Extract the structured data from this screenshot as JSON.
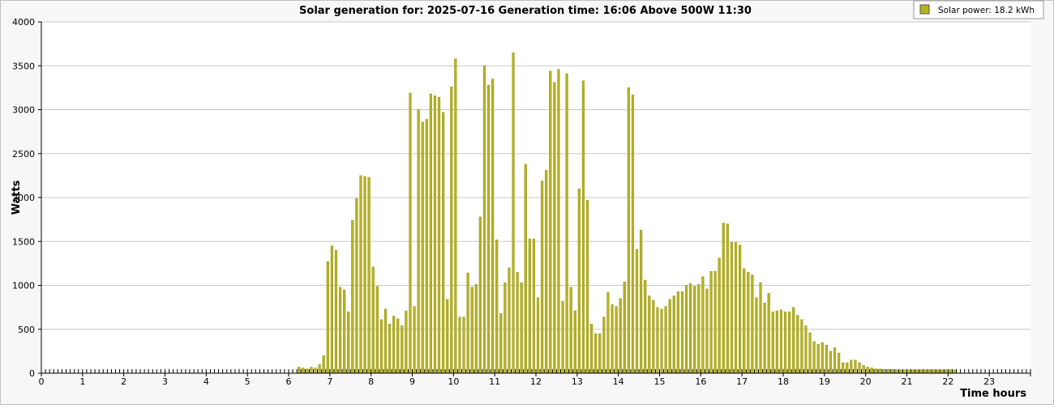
{
  "chart_data": {
    "type": "bar",
    "title": "Solar generation for: 2025-07-16 Generation time: 16:06 Above 500W 11:30",
    "xlabel": "Time hours",
    "ylabel": "Watts",
    "legend": {
      "label": "Solar power: 18.2 kWh",
      "placement": "top-right"
    },
    "xlim": [
      0,
      24
    ],
    "ylim": [
      0,
      4000
    ],
    "x_ticks": [
      0,
      1,
      2,
      3,
      4,
      5,
      6,
      7,
      8,
      9,
      10,
      11,
      12,
      13,
      14,
      15,
      16,
      17,
      18,
      19,
      20,
      21,
      22,
      23
    ],
    "y_ticks": [
      0,
      500,
      1000,
      1500,
      2000,
      2500,
      3000,
      3500,
      4000
    ],
    "grid": "horizontal",
    "colors": {
      "bar": "#b5b21f",
      "bar_edge": "#8f8c14",
      "grid": "#c8c8c8",
      "axis": "#000000",
      "plot_bg": "#ffffff",
      "outer_bg": "#f7f7f7"
    },
    "series": [
      {
        "values": [
          [
            6.25,
            70
          ],
          [
            6.35,
            60
          ],
          [
            6.45,
            50
          ],
          [
            6.55,
            70
          ],
          [
            6.65,
            60
          ],
          [
            6.75,
            100
          ],
          [
            6.85,
            200
          ],
          [
            6.95,
            1270
          ],
          [
            7.05,
            1450
          ],
          [
            7.15,
            1400
          ],
          [
            7.25,
            980
          ],
          [
            7.35,
            950
          ],
          [
            7.45,
            700
          ],
          [
            7.55,
            1740
          ],
          [
            7.65,
            1990
          ],
          [
            7.75,
            2250
          ],
          [
            7.85,
            2240
          ],
          [
            7.95,
            2230
          ],
          [
            8.05,
            1210
          ],
          [
            8.15,
            990
          ],
          [
            8.25,
            610
          ],
          [
            8.35,
            730
          ],
          [
            8.45,
            560
          ],
          [
            8.55,
            650
          ],
          [
            8.65,
            620
          ],
          [
            8.75,
            540
          ],
          [
            8.85,
            710
          ],
          [
            8.95,
            3190
          ],
          [
            9.05,
            760
          ],
          [
            9.15,
            3000
          ],
          [
            9.25,
            2860
          ],
          [
            9.35,
            2890
          ],
          [
            9.45,
            3180
          ],
          [
            9.55,
            3160
          ],
          [
            9.65,
            3140
          ],
          [
            9.75,
            2970
          ],
          [
            9.85,
            840
          ],
          [
            9.95,
            3260
          ],
          [
            10.05,
            3580
          ],
          [
            10.15,
            640
          ],
          [
            10.25,
            640
          ],
          [
            10.35,
            1140
          ],
          [
            10.45,
            980
          ],
          [
            10.55,
            1010
          ],
          [
            10.65,
            1780
          ],
          [
            10.75,
            3500
          ],
          [
            10.85,
            3280
          ],
          [
            10.95,
            3350
          ],
          [
            11.05,
            1520
          ],
          [
            11.15,
            680
          ],
          [
            11.25,
            1030
          ],
          [
            11.35,
            1200
          ],
          [
            11.45,
            3650
          ],
          [
            11.55,
            1150
          ],
          [
            11.65,
            1030
          ],
          [
            11.75,
            2380
          ],
          [
            11.85,
            1530
          ],
          [
            11.95,
            1530
          ],
          [
            12.05,
            860
          ],
          [
            12.15,
            2190
          ],
          [
            12.25,
            2310
          ],
          [
            12.35,
            3440
          ],
          [
            12.45,
            3310
          ],
          [
            12.55,
            3460
          ],
          [
            12.65,
            820
          ],
          [
            12.75,
            3410
          ],
          [
            12.85,
            980
          ],
          [
            12.95,
            710
          ],
          [
            13.05,
            2100
          ],
          [
            13.15,
            3330
          ],
          [
            13.25,
            1970
          ],
          [
            13.35,
            560
          ],
          [
            13.45,
            450
          ],
          [
            13.55,
            450
          ],
          [
            13.65,
            640
          ],
          [
            13.75,
            920
          ],
          [
            13.85,
            780
          ],
          [
            13.95,
            760
          ],
          [
            14.05,
            850
          ],
          [
            14.15,
            1040
          ],
          [
            14.25,
            3250
          ],
          [
            14.35,
            3170
          ],
          [
            14.45,
            1410
          ],
          [
            14.55,
            1630
          ],
          [
            14.65,
            1060
          ],
          [
            14.75,
            880
          ],
          [
            14.85,
            830
          ],
          [
            14.95,
            750
          ],
          [
            15.05,
            730
          ],
          [
            15.15,
            760
          ],
          [
            15.25,
            840
          ],
          [
            15.35,
            880
          ],
          [
            15.45,
            930
          ],
          [
            15.55,
            930
          ],
          [
            15.65,
            1000
          ],
          [
            15.75,
            1020
          ],
          [
            15.85,
            990
          ],
          [
            15.95,
            1010
          ],
          [
            16.05,
            1100
          ],
          [
            16.15,
            960
          ],
          [
            16.25,
            1160
          ],
          [
            16.35,
            1160
          ],
          [
            16.45,
            1310
          ],
          [
            16.55,
            1710
          ],
          [
            16.65,
            1700
          ],
          [
            16.75,
            1490
          ],
          [
            16.85,
            1490
          ],
          [
            16.95,
            1460
          ],
          [
            17.05,
            1190
          ],
          [
            17.15,
            1150
          ],
          [
            17.25,
            1120
          ],
          [
            17.35,
            860
          ],
          [
            17.45,
            1030
          ],
          [
            17.55,
            800
          ],
          [
            17.65,
            910
          ],
          [
            17.75,
            700
          ],
          [
            17.85,
            710
          ],
          [
            17.95,
            720
          ],
          [
            18.05,
            700
          ],
          [
            18.15,
            700
          ],
          [
            18.25,
            750
          ],
          [
            18.35,
            660
          ],
          [
            18.45,
            610
          ],
          [
            18.55,
            540
          ],
          [
            18.65,
            460
          ],
          [
            18.75,
            360
          ],
          [
            18.85,
            330
          ],
          [
            18.95,
            350
          ],
          [
            19.05,
            320
          ],
          [
            19.15,
            250
          ],
          [
            19.25,
            290
          ],
          [
            19.35,
            230
          ],
          [
            19.45,
            120
          ],
          [
            19.55,
            120
          ],
          [
            19.65,
            150
          ],
          [
            19.75,
            150
          ],
          [
            19.85,
            120
          ],
          [
            19.95,
            90
          ],
          [
            20.05,
            70
          ],
          [
            20.15,
            60
          ],
          [
            20.25,
            50
          ],
          [
            20.35,
            50
          ],
          [
            20.45,
            45
          ],
          [
            20.55,
            45
          ],
          [
            20.65,
            45
          ],
          [
            20.75,
            40
          ],
          [
            20.85,
            40
          ],
          [
            20.95,
            40
          ],
          [
            21.05,
            40
          ],
          [
            21.15,
            40
          ],
          [
            21.25,
            40
          ],
          [
            21.35,
            40
          ],
          [
            21.45,
            40
          ],
          [
            21.55,
            40
          ],
          [
            21.65,
            40
          ],
          [
            21.75,
            40
          ],
          [
            21.85,
            40
          ],
          [
            21.95,
            40
          ],
          [
            22.05,
            40
          ],
          [
            22.15,
            40
          ]
        ]
      }
    ]
  }
}
